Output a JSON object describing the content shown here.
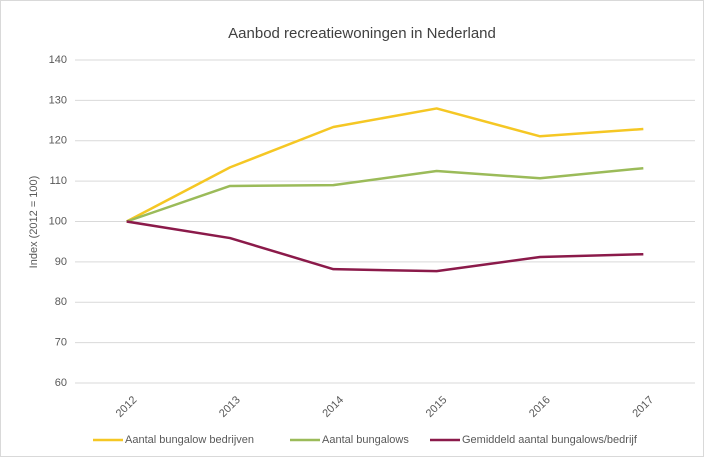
{
  "chart_data": {
    "type": "line",
    "title": "Aanbod recreatiewoningen in Nederland",
    "y_label": "Index (2012 = 100)",
    "categories": [
      "2012",
      "2013",
      "2014",
      "2015",
      "2016",
      "2017"
    ],
    "series": [
      {
        "name": "Aantal bungalow bedrijven",
        "color": "#f5c724",
        "values": [
          100,
          113.4,
          123.4,
          128,
          121.1,
          122.9
        ]
      },
      {
        "name": "Aantal bungalows",
        "color": "#9bbb59",
        "values": [
          100,
          108.8,
          109,
          112.5,
          110.7,
          113.2
        ]
      },
      {
        "name": "Gemiddeld aantal bungalows/bedrijf",
        "color": "#8b1a4a",
        "values": [
          100,
          95.9,
          88.2,
          87.7,
          91.2,
          91.9
        ]
      }
    ],
    "ylim": [
      60,
      140
    ],
    "yticks": [
      60,
      70,
      80,
      90,
      100,
      110,
      120,
      130,
      140
    ],
    "grid": true,
    "legend": "bottom"
  }
}
